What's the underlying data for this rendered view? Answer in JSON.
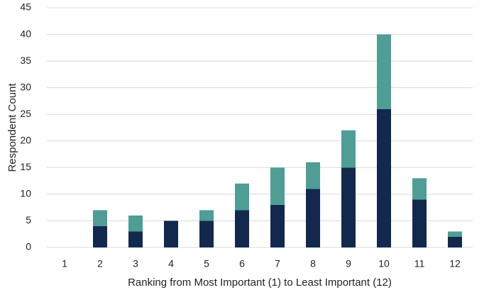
{
  "chart_data": {
    "type": "stacked_bar",
    "y_label": "Respondent Count",
    "x_label": "Ranking from Most Important (1) to Least Important (12)",
    "categories": [
      "1",
      "2",
      "3",
      "4",
      "5",
      "6",
      "7",
      "8",
      "9",
      "10",
      "11",
      "12"
    ],
    "series": [
      {
        "color": "#12294d",
        "values": [
          0,
          4,
          3,
          5,
          5,
          7,
          8,
          11,
          15,
          26,
          9,
          2
        ]
      },
      {
        "color": "#4e9e96",
        "values": [
          0,
          3,
          3,
          0,
          2,
          5,
          7,
          5,
          7,
          14,
          4,
          1
        ]
      }
    ],
    "ylim": [
      0,
      45
    ],
    "yticks": [
      0,
      5,
      10,
      15,
      20,
      25,
      30,
      35,
      40,
      45
    ],
    "grid": true
  }
}
